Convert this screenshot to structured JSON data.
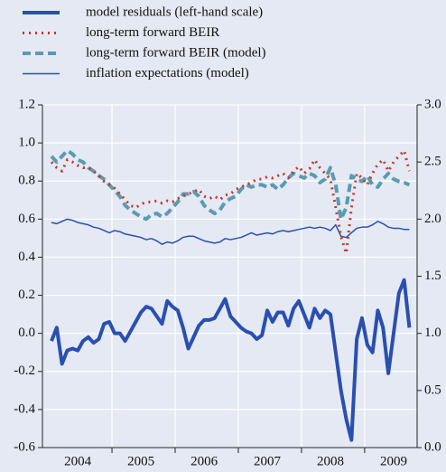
{
  "chart_data": {
    "type": "line",
    "categories": [
      null,
      null,
      null,
      null,
      null,
      "2004",
      null,
      null,
      null,
      null,
      null,
      null,
      null,
      null,
      null,
      null,
      null,
      "2005",
      null,
      null,
      null,
      null,
      null,
      null,
      null,
      null,
      null,
      null,
      null,
      "2006",
      null,
      null,
      null,
      null,
      null,
      null,
      null,
      null,
      null,
      null,
      null,
      "2007",
      null,
      null,
      null,
      null,
      null,
      null,
      null,
      null,
      null,
      null,
      null,
      "2008",
      null,
      null,
      null,
      null,
      null,
      null,
      null,
      null,
      null,
      null,
      null,
      "2009",
      null,
      null,
      null
    ],
    "series": [
      {
        "name": "model residuals (left-hand scale)",
        "color": "#2a4fb0",
        "line_style": "solid",
        "line_width": 4,
        "axis": "y",
        "values": [
          -0.04,
          0.03,
          -0.16,
          -0.09,
          -0.08,
          -0.09,
          -0.04,
          -0.02,
          -0.05,
          -0.03,
          0.05,
          0.06,
          0.0,
          0.0,
          -0.04,
          0.01,
          0.06,
          0.11,
          0.14,
          0.13,
          0.09,
          0.05,
          0.17,
          0.14,
          0.12,
          0.03,
          -0.08,
          -0.02,
          0.04,
          0.07,
          0.07,
          0.08,
          0.13,
          0.18,
          0.09,
          0.06,
          0.03,
          0.01,
          0.0,
          -0.03,
          -0.01,
          0.12,
          0.06,
          0.11,
          0.11,
          0.04,
          0.13,
          0.17,
          0.1,
          0.03,
          0.13,
          0.08,
          0.12,
          0.1,
          -0.1,
          -0.3,
          -0.45,
          -0.56,
          -0.03,
          0.08,
          -0.06,
          -0.1,
          0.12,
          0.03,
          -0.21,
          0.0,
          0.21,
          0.28,
          0.03
        ]
      },
      {
        "name": "long-term forward BEIR",
        "color": "#c0392b",
        "line_style": "dotted",
        "line_width": 3,
        "axis": "y2",
        "values": [
          2.5,
          2.45,
          2.42,
          2.52,
          2.5,
          2.47,
          2.45,
          2.45,
          2.42,
          2.38,
          2.33,
          2.3,
          2.27,
          2.22,
          2.17,
          2.12,
          2.1,
          2.13,
          2.15,
          2.15,
          2.16,
          2.14,
          2.16,
          2.15,
          2.18,
          2.2,
          2.22,
          2.24,
          2.26,
          2.2,
          2.18,
          2.2,
          2.17,
          2.21,
          2.22,
          2.26,
          2.28,
          2.3,
          2.32,
          2.35,
          2.35,
          2.37,
          2.36,
          2.38,
          2.4,
          2.36,
          2.42,
          2.46,
          2.4,
          2.44,
          2.52,
          2.45,
          2.4,
          2.35,
          2.1,
          1.85,
          1.7,
          2.1,
          2.4,
          2.36,
          2.3,
          2.4,
          2.48,
          2.52,
          2.42,
          2.5,
          2.55,
          2.6,
          2.42
        ]
      },
      {
        "name": "long-term forward BEIR (model)",
        "color": "#5a9bb0",
        "line_style": "dashed",
        "line_width": 4,
        "axis": "y2",
        "values": [
          2.55,
          2.5,
          2.55,
          2.6,
          2.57,
          2.52,
          2.5,
          2.45,
          2.42,
          2.38,
          2.35,
          2.3,
          2.25,
          2.2,
          2.12,
          2.08,
          2.05,
          2.02,
          2.0,
          2.04,
          2.05,
          2.02,
          2.05,
          2.1,
          2.15,
          2.22,
          2.22,
          2.24,
          2.2,
          2.12,
          2.08,
          2.05,
          2.08,
          2.15,
          2.18,
          2.2,
          2.26,
          2.3,
          2.28,
          2.3,
          2.3,
          2.28,
          2.3,
          2.26,
          2.3,
          2.36,
          2.4,
          2.38,
          2.36,
          2.4,
          2.38,
          2.32,
          2.35,
          2.45,
          2.3,
          2.0,
          2.1,
          2.38,
          2.35,
          2.33,
          2.38,
          2.3,
          2.28,
          2.35,
          2.4,
          2.35,
          2.33,
          2.32,
          2.3
        ]
      },
      {
        "name": "inflation expectations (model)",
        "color": "#2a4fb0",
        "line_style": "solid",
        "line_width": 1.5,
        "axis": "y2",
        "values": [
          1.97,
          1.96,
          1.98,
          2.0,
          1.99,
          1.97,
          1.96,
          1.95,
          1.93,
          1.92,
          1.9,
          1.88,
          1.9,
          1.89,
          1.87,
          1.86,
          1.85,
          1.84,
          1.82,
          1.83,
          1.81,
          1.78,
          1.8,
          1.79,
          1.81,
          1.84,
          1.85,
          1.85,
          1.83,
          1.81,
          1.8,
          1.79,
          1.8,
          1.83,
          1.82,
          1.83,
          1.84,
          1.86,
          1.88,
          1.86,
          1.87,
          1.88,
          1.87,
          1.89,
          1.9,
          1.89,
          1.9,
          1.91,
          1.92,
          1.93,
          1.92,
          1.93,
          1.92,
          1.9,
          1.95,
          1.85,
          1.84,
          1.88,
          1.92,
          1.93,
          1.93,
          1.95,
          1.98,
          1.96,
          1.93,
          1.92,
          1.92,
          1.91,
          1.91
        ]
      }
    ],
    "ylim": [
      -0.6,
      1.2
    ],
    "yticks": [
      1.2,
      {
        "value": 1,
        "label": "1.0"
      },
      0.8,
      0.6,
      0.4,
      0.2,
      {
        "value": 0,
        "label": "0.0"
      },
      -0.2,
      -0.4,
      -0.6
    ],
    "y2lim": [
      0,
      3
    ],
    "y2ticks": [
      {
        "value": 3,
        "label": "3.0"
      },
      2.5,
      {
        "value": 2,
        "label": "2.0"
      },
      1.5,
      {
        "value": 1,
        "label": "1.0"
      },
      0.5,
      {
        "value": 0,
        "label": "0.0"
      }
    ],
    "grid": true
  }
}
